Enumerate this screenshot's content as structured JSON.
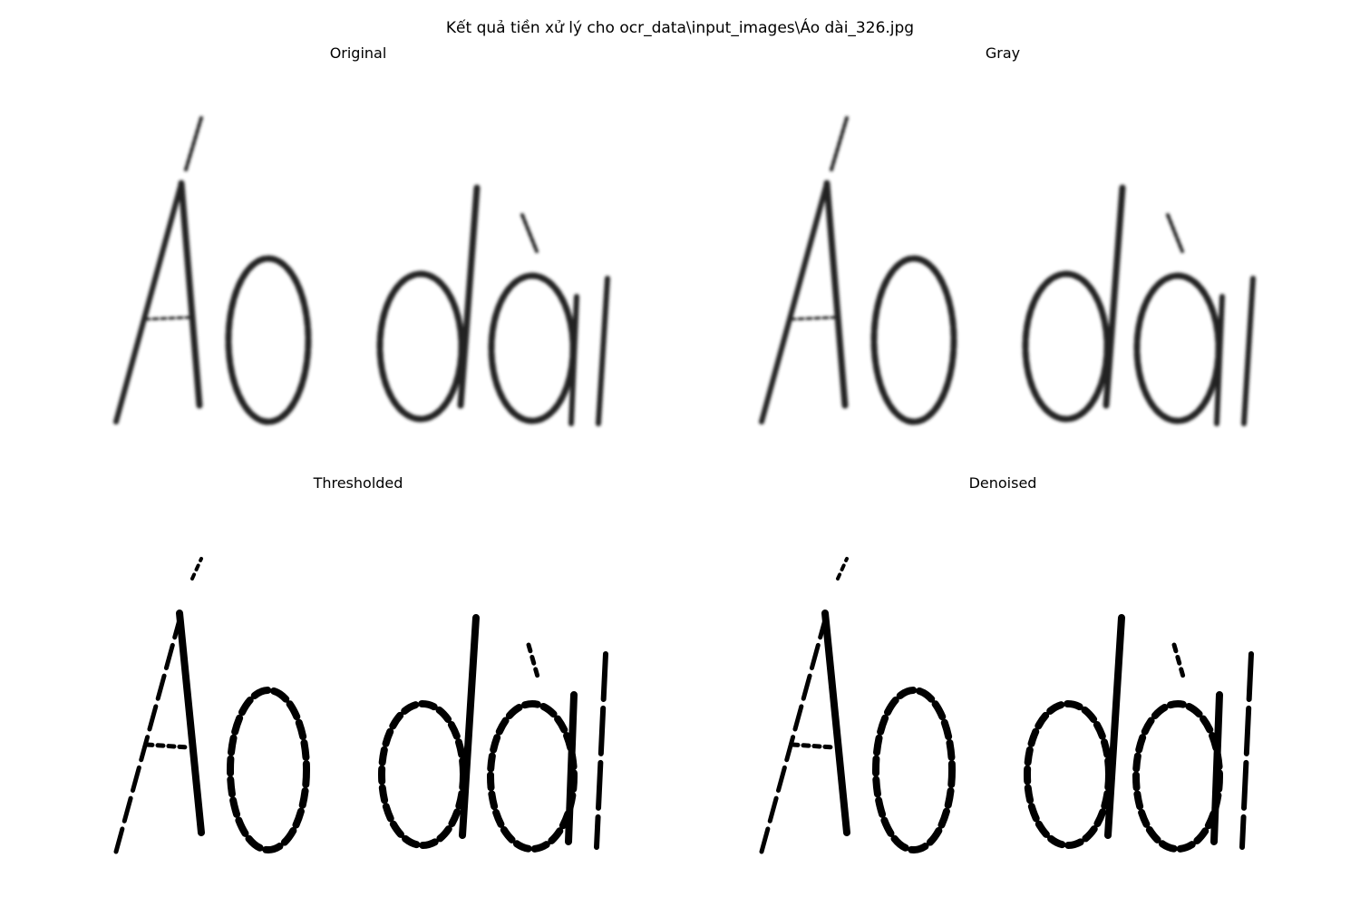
{
  "figure": {
    "suptitle": "Kết quả tiền xử lý cho ocr_data\\input_images\\Áo dài_326.jpg",
    "panels": [
      {
        "title": "Original",
        "style": "blurred",
        "content": "handwritten text image",
        "text_in_image": "Áo dài"
      },
      {
        "title": "Gray",
        "style": "blurred",
        "content": "handwritten text image",
        "text_in_image": "Áo dài"
      },
      {
        "title": "Thresholded",
        "style": "binary",
        "content": "handwritten text image",
        "text_in_image": "Áo dài"
      },
      {
        "title": "Denoised",
        "style": "binary",
        "content": "handwritten text image",
        "text_in_image": "Áo dài"
      }
    ]
  },
  "colors": {
    "background": "#ffffff",
    "ink": "#000000",
    "soft_ink": "#222222"
  }
}
